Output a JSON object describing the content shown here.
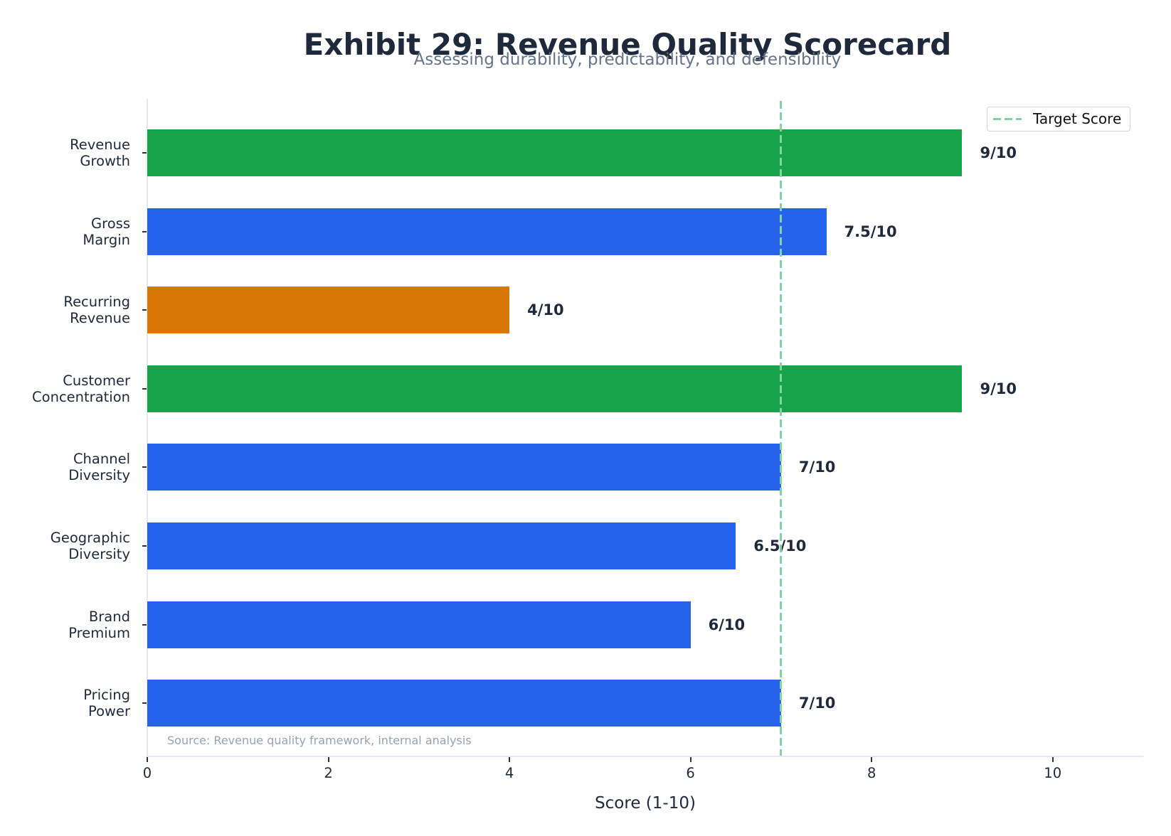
{
  "header": {
    "title": "Exhibit 29: Revenue Quality Scorecard",
    "subtitle": "Assessing durability, predictability, and defensibility"
  },
  "footer": {
    "source": "Source: Revenue quality framework, internal analysis"
  },
  "legend": {
    "target_label": "Target Score"
  },
  "colors": {
    "strong": "#16a34a",
    "neutral": "#2563eb",
    "weak": "#d97706",
    "target_line": "#86d1a0",
    "text": "#1e293b",
    "subtitle": "#64748b",
    "source": "#94a3b8"
  },
  "chart_data": {
    "type": "bar",
    "orientation": "horizontal",
    "title": "Exhibit 29: Revenue Quality Scorecard",
    "subtitle": "Assessing durability, predictability, and defensibility",
    "xlabel": "Score (1-10)",
    "ylabel": "",
    "xlim": [
      0,
      11
    ],
    "xticks": [
      0,
      2,
      4,
      6,
      8,
      10
    ],
    "grid": false,
    "legend_position": "upper right",
    "categories": [
      "Revenue\nGrowth",
      "Gross\nMargin",
      "Recurring\nRevenue",
      "Customer\nConcentration",
      "Channel\nDiversity",
      "Geographic\nDiversity",
      "Brand\nPremium",
      "Pricing\nPower"
    ],
    "values": [
      9,
      7.5,
      4,
      9,
      7,
      6.5,
      6,
      7
    ],
    "value_labels": [
      "9/10",
      "7.5/10",
      "4/10",
      "9/10",
      "7/10",
      "6.5/10",
      "6/10",
      "7/10"
    ],
    "bar_colors": [
      "#16a34a",
      "#2563eb",
      "#d97706",
      "#16a34a",
      "#2563eb",
      "#2563eb",
      "#2563eb",
      "#2563eb"
    ],
    "reference_lines": [
      {
        "type": "vertical",
        "x": 7,
        "label": "Target Score",
        "style": "dashed",
        "color": "#86d1a0"
      }
    ],
    "annotations": [
      "Source: Revenue quality framework, internal analysis"
    ]
  }
}
